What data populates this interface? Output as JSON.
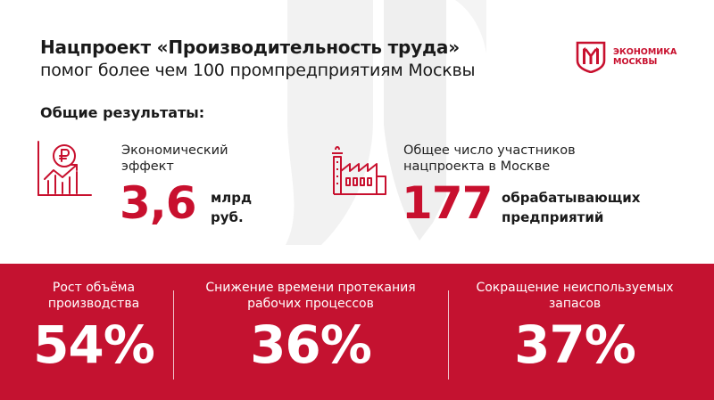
{
  "header": {
    "title_line1": "Нацпроект «Производительность труда»",
    "title_line2": "помог более чем 100 промпредприятиям Москвы"
  },
  "logo": {
    "line1": "ЭКОНОМИКА",
    "line2": "МОСКВЫ",
    "icon": "moscow-economy-logo-icon"
  },
  "section_heading": "Общие результаты:",
  "metrics": [
    {
      "icon": "ruble-growth-chart-icon",
      "label_line1": "Экономический",
      "label_line2": "эффект",
      "value": "3,6",
      "unit_line1": "млрд",
      "unit_line2": "руб."
    },
    {
      "icon": "factory-icon",
      "label_line1": "Общее число участников",
      "label_line2": "нацпроекта в Москве",
      "value": "177",
      "unit_line1": "обрабатывающих",
      "unit_line2": "предприятий"
    }
  ],
  "stats": [
    {
      "label_line1": "Рост объёма",
      "label_line2": "производства",
      "value": "54%"
    },
    {
      "label_line1": "Снижение времени протекания",
      "label_line2": "рабочих процессов",
      "value": "36%"
    },
    {
      "label_line1": "Сокращение неиспользуемых",
      "label_line2": "запасов",
      "value": "37%"
    }
  ],
  "colors": {
    "accent": "#c8102e",
    "band": "#c41230",
    "text": "#1a1a1a"
  }
}
